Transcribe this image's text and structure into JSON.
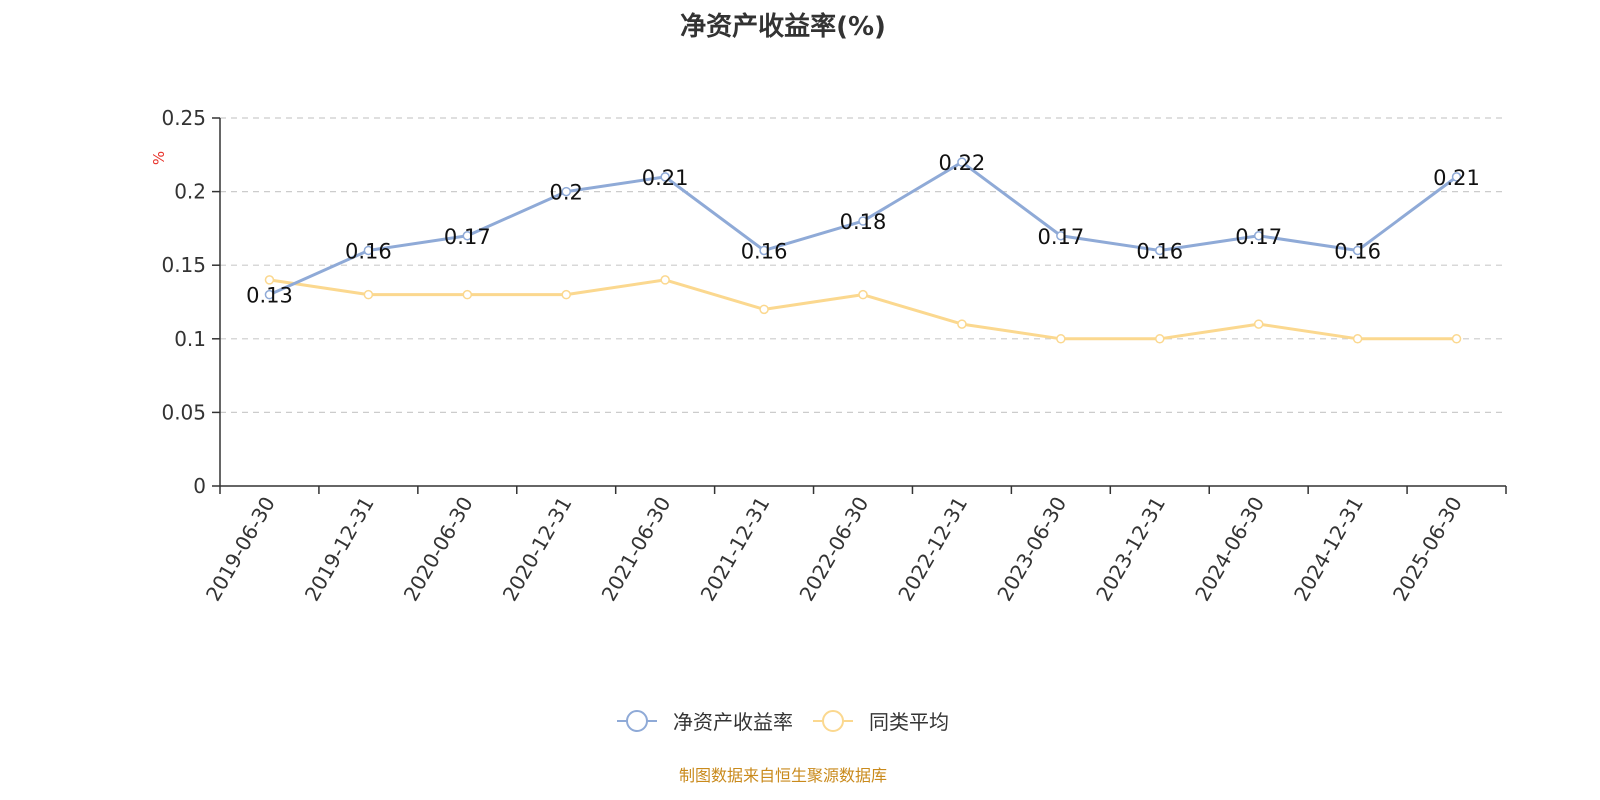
{
  "chart_data": {
    "type": "line",
    "title": "净资产收益率(%)",
    "ylabel": "%",
    "xlabel": "",
    "ylim": [
      0,
      0.25
    ],
    "yticks": [
      "0",
      "0.05",
      "0.1",
      "0.15",
      "0.2",
      "0.25"
    ],
    "yticks_values": [
      0,
      0.05,
      0.1,
      0.15,
      0.2,
      0.25
    ],
    "grid": true,
    "legend_position": "bottom-center",
    "categories": [
      "2019-06-30",
      "2019-12-31",
      "2020-06-30",
      "2020-12-31",
      "2021-06-30",
      "2021-12-31",
      "2022-06-30",
      "2022-12-31",
      "2023-06-30",
      "2023-12-31",
      "2024-06-30",
      "2024-12-31",
      "2025-06-30"
    ],
    "series": [
      {
        "name": "净资产收益率",
        "color": "#8faad7",
        "values": [
          0.13,
          0.16,
          0.17,
          0.2,
          0.21,
          0.16,
          0.18,
          0.22,
          0.17,
          0.16,
          0.17,
          0.16,
          0.21
        ],
        "labels": [
          "0.13",
          "0.16",
          "0.17",
          "0.2",
          "0.21",
          "0.16",
          "0.18",
          "0.22",
          "0.17",
          "0.16",
          "0.17",
          "0.16",
          "0.21"
        ]
      },
      {
        "name": "同类平均",
        "color": "#fbd88f",
        "values": [
          0.14,
          0.13,
          0.13,
          0.13,
          0.14,
          0.12,
          0.13,
          0.11,
          0.1,
          0.1,
          0.11,
          0.1,
          0.1
        ]
      }
    ]
  },
  "source_note": "制图数据来自恒生聚源数据库"
}
